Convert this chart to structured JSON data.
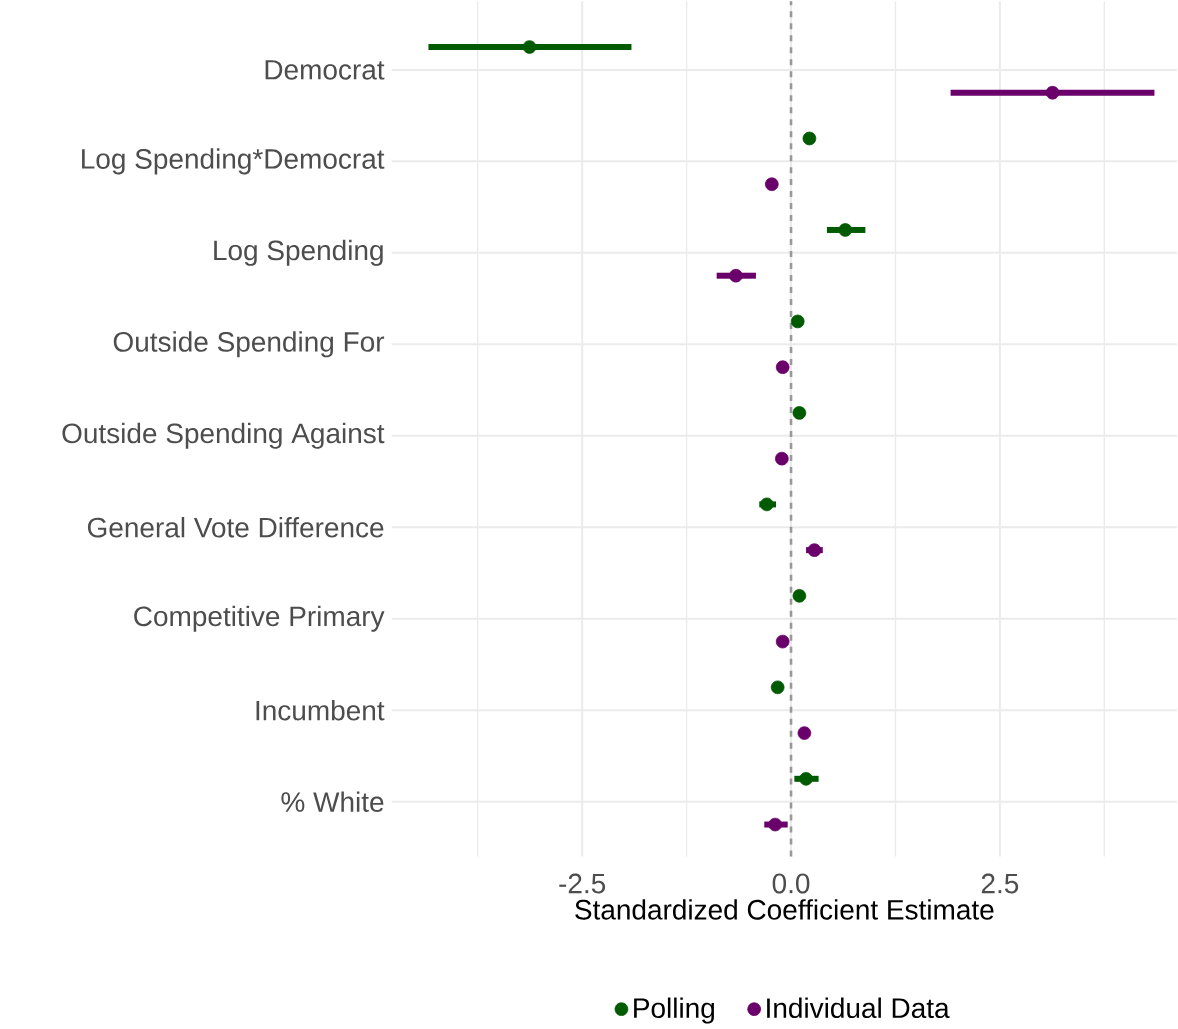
{
  "chart_data": {
    "type": "scatter",
    "orientation": "horizontal",
    "xlabel": "Standardized Coefficient Estimate",
    "categories": [
      "Democrat",
      "Log Spending*Democrat",
      "Log Spending",
      "Outside Spending For",
      "Outside Spending Against",
      "General Vote Difference",
      "Competitive Primary",
      "Incumbent",
      "% White"
    ],
    "series": [
      {
        "name": "Polling",
        "color": "#005a00",
        "values": [
          -3.13,
          0.22,
          0.65,
          0.08,
          0.1,
          -0.29,
          0.1,
          -0.16,
          0.18
        ],
        "errors": [
          [
            -4.34,
            -1.91
          ],
          null,
          [
            0.43,
            0.89
          ],
          null,
          null,
          [
            -0.38,
            -0.18
          ],
          null,
          null,
          [
            0.04,
            0.33
          ]
        ]
      },
      {
        "name": "Individual Data",
        "color": "#6a006a",
        "values": [
          3.13,
          -0.23,
          -0.66,
          -0.1,
          -0.11,
          0.28,
          -0.1,
          0.16,
          -0.19
        ],
        "errors": [
          [
            1.91,
            4.35
          ],
          null,
          [
            -0.89,
            -0.42
          ],
          null,
          null,
          [
            0.18,
            0.38
          ],
          null,
          null,
          [
            -0.32,
            -0.04
          ]
        ]
      }
    ],
    "xlim": [
      -4.78,
      4.62
    ],
    "xticks": [
      {
        "value": -3.75,
        "label": null
      },
      -2.5,
      {
        "value": -1.25,
        "label": null
      },
      {
        "value": 0,
        "label": "0.0"
      },
      {
        "value": 1.25,
        "label": null
      },
      2.5,
      {
        "value": 3.75,
        "label": null
      }
    ],
    "ref_lines": [
      {
        "axis": "x",
        "value": 0,
        "color": "#999999",
        "line_style": "dashed"
      }
    ],
    "grid": true,
    "legend": "bottom",
    "marker": "circle"
  }
}
